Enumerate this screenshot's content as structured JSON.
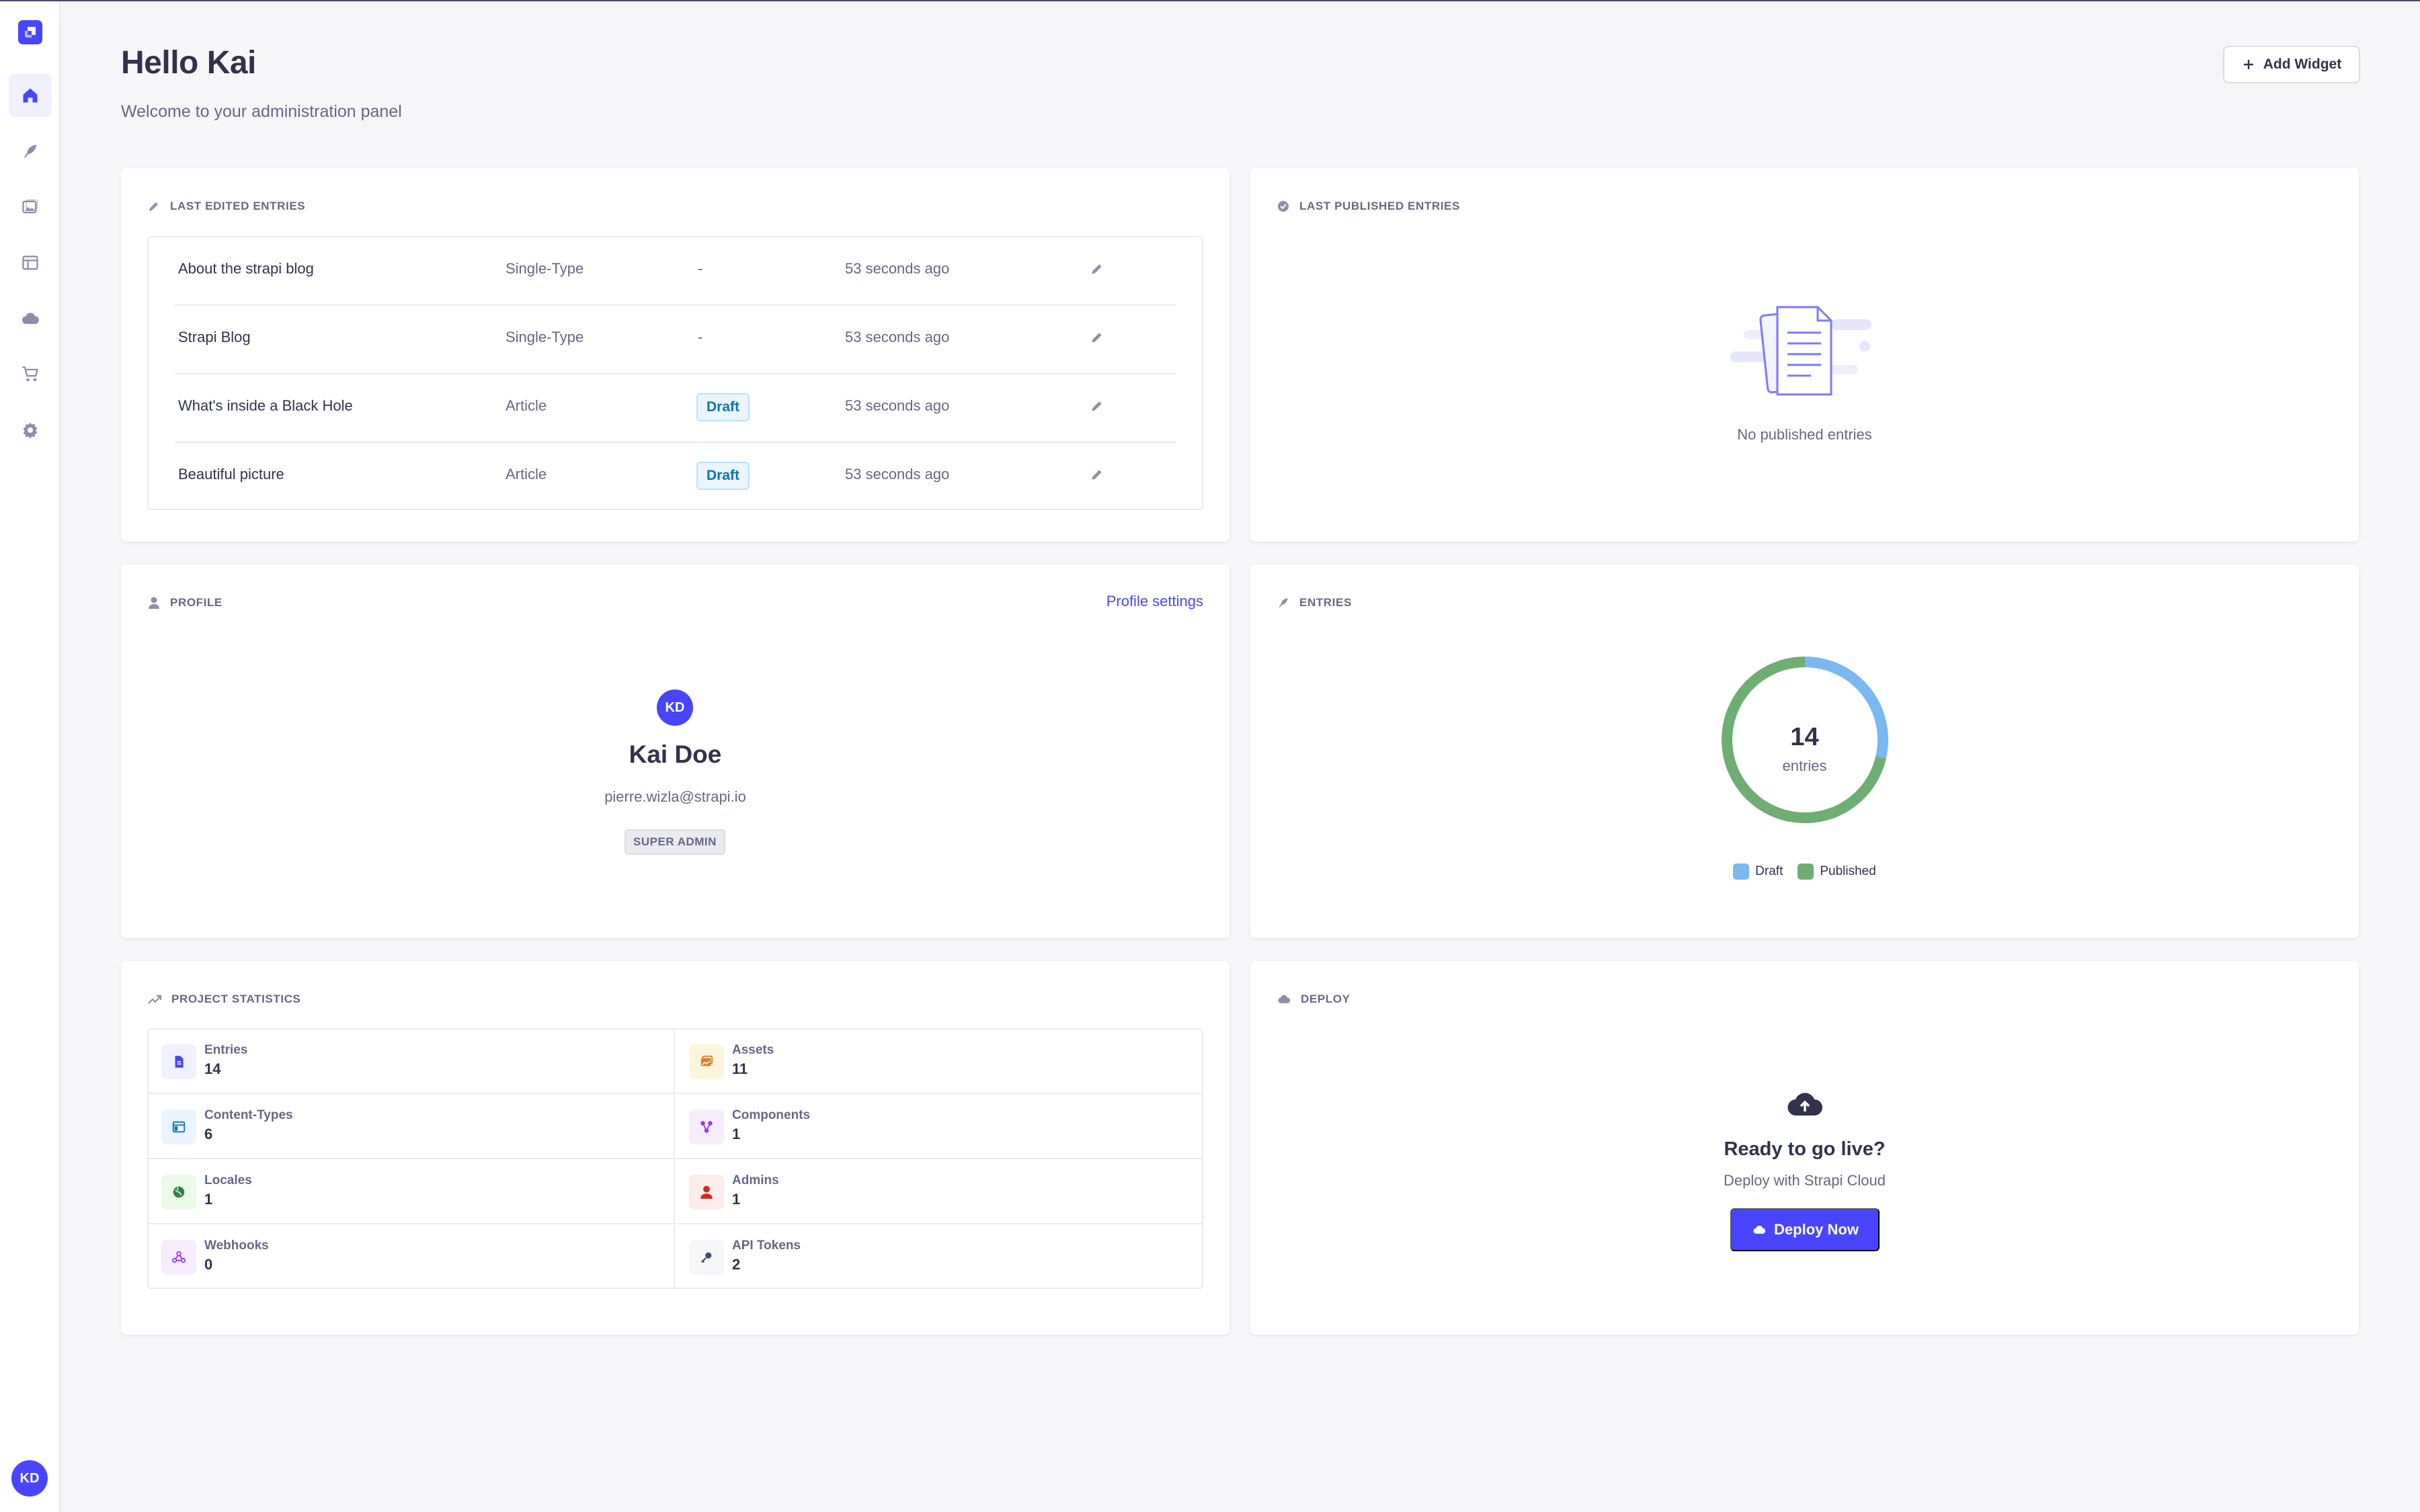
{
  "header": {
    "title": "Hello Kai",
    "subtitle": "Welcome to your administration panel",
    "add_widget_label": "Add Widget"
  },
  "sidebar": {
    "items": [
      {
        "icon": "house-icon",
        "active": true
      },
      {
        "icon": "feather-icon"
      },
      {
        "icon": "images-icon"
      },
      {
        "icon": "layout-icon"
      },
      {
        "icon": "cloud-icon"
      },
      {
        "icon": "cart-icon"
      },
      {
        "icon": "gear-icon"
      }
    ],
    "user_initials": "KD"
  },
  "last_edited": {
    "title": "Last edited entries",
    "rows": [
      {
        "title": "About the strapi blog",
        "type": "Single-Type",
        "status": "-",
        "time": "53 seconds ago"
      },
      {
        "title": "Strapi Blog",
        "type": "Single-Type",
        "status": "-",
        "time": "53 seconds ago"
      },
      {
        "title": "What's inside a Black Hole",
        "type": "Article",
        "status": "Draft",
        "time": "53 seconds ago"
      },
      {
        "title": "Beautiful picture",
        "type": "Article",
        "status": "Draft",
        "time": "53 seconds ago"
      }
    ]
  },
  "last_published": {
    "title": "Last published entries",
    "empty_text": "No published entries"
  },
  "profile": {
    "title": "Profile",
    "settings_link": "Profile settings",
    "initials": "KD",
    "name": "Kai Doe",
    "email": "pierre.wizla@strapi.io",
    "role": "SUPER ADMIN"
  },
  "entries": {
    "title": "Entries",
    "total": "14",
    "total_label": "entries",
    "legend": [
      {
        "label": "Draft",
        "color": "#79b8f0"
      },
      {
        "label": "Published",
        "color": "#6fae72"
      }
    ]
  },
  "chart_data": {
    "type": "pie",
    "categories": [
      "Draft",
      "Published"
    ],
    "values": [
      4,
      10
    ],
    "total": 14
  },
  "statistics": {
    "title": "Project statistics",
    "items": [
      {
        "label": "Entries",
        "value": "14",
        "icon": "file-icon",
        "bg": "#f0f0ff",
        "fg": "#4945ff"
      },
      {
        "label": "Assets",
        "value": "11",
        "icon": "images-icon",
        "bg": "#fdf4dc",
        "fg": "#d9822f"
      },
      {
        "label": "Content-Types",
        "value": "6",
        "icon": "layout-icon",
        "bg": "#eaf5ff",
        "fg": "#0c75af"
      },
      {
        "label": "Components",
        "value": "1",
        "icon": "puzzle-icon",
        "bg": "#f6ecfc",
        "fg": "#9736e8"
      },
      {
        "label": "Locales",
        "value": "1",
        "icon": "globe-icon",
        "bg": "#eafbe7",
        "fg": "#328048"
      },
      {
        "label": "Admins",
        "value": "1",
        "icon": "user-icon",
        "bg": "#fcecea",
        "fg": "#d02b20"
      },
      {
        "label": "Webhooks",
        "value": "0",
        "icon": "webhook-icon",
        "bg": "#f6ecfc",
        "fg": "#9736e8"
      },
      {
        "label": "API Tokens",
        "value": "2",
        "icon": "key-icon",
        "bg": "#f6f6f9",
        "fg": "#4a4a6a"
      }
    ]
  },
  "deploy": {
    "title": "Deploy",
    "heading": "Ready to go live?",
    "subheading": "Deploy with Strapi Cloud",
    "button_label": "Deploy Now"
  }
}
